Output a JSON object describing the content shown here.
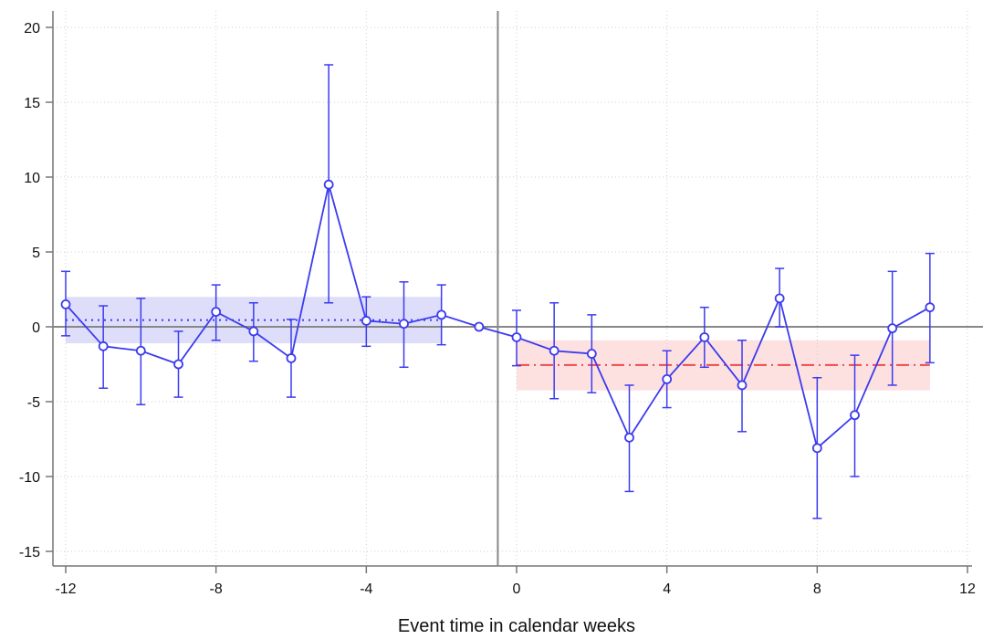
{
  "chart_data": {
    "type": "line",
    "xlabel": "Event time in calendar weeks",
    "ylabel": "",
    "title": "",
    "xlim": [
      -12,
      12
    ],
    "ylim": [
      -15,
      20
    ],
    "x_ticks": [
      -12,
      -8,
      -4,
      0,
      4,
      8,
      12
    ],
    "y_ticks": [
      -15,
      -10,
      -5,
      0,
      5,
      10,
      15,
      20
    ],
    "x_tick_labels": [
      "-12",
      "-8",
      "-4",
      "0",
      "4",
      "8",
      "12"
    ],
    "y_tick_labels": [
      "-15",
      "-10",
      "-5",
      "0",
      "5",
      "10",
      "15",
      "20"
    ],
    "grid": true,
    "event_line_x": -0.5,
    "series": [
      {
        "x": [
          -12,
          -11,
          -10,
          -9,
          -8,
          -7,
          -6,
          -5,
          -4,
          -3,
          -2,
          -1,
          0,
          1,
          2,
          3,
          4,
          5,
          6,
          7,
          8,
          9,
          10,
          11
        ],
        "y": [
          1.5,
          -1.3,
          -1.6,
          -2.5,
          1.0,
          -0.3,
          -2.1,
          9.5,
          0.4,
          0.2,
          0.8,
          0.0,
          -0.7,
          -1.6,
          -1.8,
          -7.4,
          -3.5,
          -0.7,
          -3.9,
          1.9,
          -8.1,
          -5.9,
          -0.1,
          1.3
        ],
        "ci_low": [
          -0.6,
          -4.1,
          -5.2,
          -4.7,
          -0.9,
          -2.3,
          -4.7,
          1.6,
          -1.3,
          -2.7,
          -1.2,
          null,
          -2.6,
          -4.8,
          -4.4,
          -11.0,
          -5.4,
          -2.7,
          -7.0,
          0.0,
          -12.8,
          -10.0,
          -3.9,
          -2.4
        ],
        "ci_high": [
          3.7,
          1.4,
          1.9,
          -0.3,
          2.8,
          1.6,
          0.5,
          17.5,
          2.0,
          3.0,
          2.8,
          null,
          1.1,
          1.6,
          0.8,
          -3.9,
          -1.6,
          1.3,
          -0.9,
          3.9,
          -3.4,
          -1.9,
          3.7,
          4.9
        ]
      }
    ],
    "reference_lines": [
      {
        "x_from": -12,
        "x_to": -2,
        "mean": 0.45,
        "band_low": -1.1,
        "band_high": 2.0,
        "color": "#3b3bf0",
        "band_color": "#dedefb",
        "style": "dotted"
      },
      {
        "x_from": 0,
        "x_to": 11,
        "mean": -2.55,
        "band_low": -4.25,
        "band_high": -0.9,
        "color": "#f04a4a",
        "band_color": "#fde0e0",
        "style": "dash-dot"
      }
    ],
    "colors": {
      "series": "#3b3bf0",
      "axis": "#777777",
      "grid": "#cfcfcf",
      "zero_line": "#888888",
      "event_line": "#888888"
    }
  }
}
